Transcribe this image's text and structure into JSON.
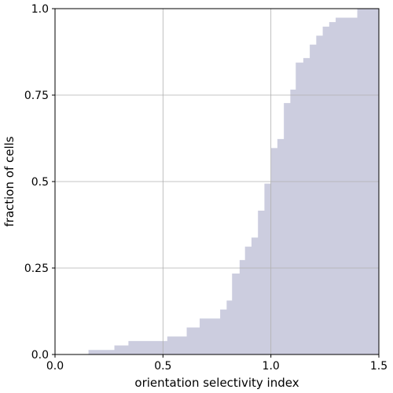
{
  "chart_data": {
    "type": "area",
    "subtype": "cumulative-step",
    "xlabel": "orientation selectivity index",
    "ylabel": "fraction of cells",
    "xlim": [
      0.0,
      1.5
    ],
    "ylim": [
      0.0,
      1.0
    ],
    "xticks": [
      {
        "value": 0.0,
        "label": "0.0"
      },
      {
        "value": 0.5,
        "label": "0.5"
      },
      {
        "value": 1.0,
        "label": "1.0"
      },
      {
        "value": 1.5,
        "label": "1.5"
      }
    ],
    "yticks": [
      {
        "value": 0.0,
        "label": "0.0"
      },
      {
        "value": 0.25,
        "label": "0.25"
      },
      {
        "value": 0.5,
        "label": "0.5"
      },
      {
        "value": 0.75,
        "label": "0.75"
      },
      {
        "value": 1.0,
        "label": "1.0"
      }
    ],
    "grid": true,
    "fill_color": "#cccddf",
    "steps": [
      {
        "x": 0.155,
        "y": 0.013
      },
      {
        "x": 0.275,
        "y": 0.026
      },
      {
        "x": 0.34,
        "y": 0.039
      },
      {
        "x": 0.52,
        "y": 0.052
      },
      {
        "x": 0.61,
        "y": 0.078
      },
      {
        "x": 0.67,
        "y": 0.104
      },
      {
        "x": 0.765,
        "y": 0.13
      },
      {
        "x": 0.795,
        "y": 0.156
      },
      {
        "x": 0.82,
        "y": 0.234
      },
      {
        "x": 0.855,
        "y": 0.273
      },
      {
        "x": 0.88,
        "y": 0.312
      },
      {
        "x": 0.91,
        "y": 0.338
      },
      {
        "x": 0.94,
        "y": 0.416
      },
      {
        "x": 0.97,
        "y": 0.494
      },
      {
        "x": 1.0,
        "y": 0.597
      },
      {
        "x": 1.03,
        "y": 0.623
      },
      {
        "x": 1.06,
        "y": 0.727
      },
      {
        "x": 1.09,
        "y": 0.766
      },
      {
        "x": 1.115,
        "y": 0.844
      },
      {
        "x": 1.15,
        "y": 0.857
      },
      {
        "x": 1.18,
        "y": 0.896
      },
      {
        "x": 1.21,
        "y": 0.922
      },
      {
        "x": 1.24,
        "y": 0.948
      },
      {
        "x": 1.27,
        "y": 0.961
      },
      {
        "x": 1.3,
        "y": 0.974
      },
      {
        "x": 1.4,
        "y": 1.0
      }
    ]
  }
}
